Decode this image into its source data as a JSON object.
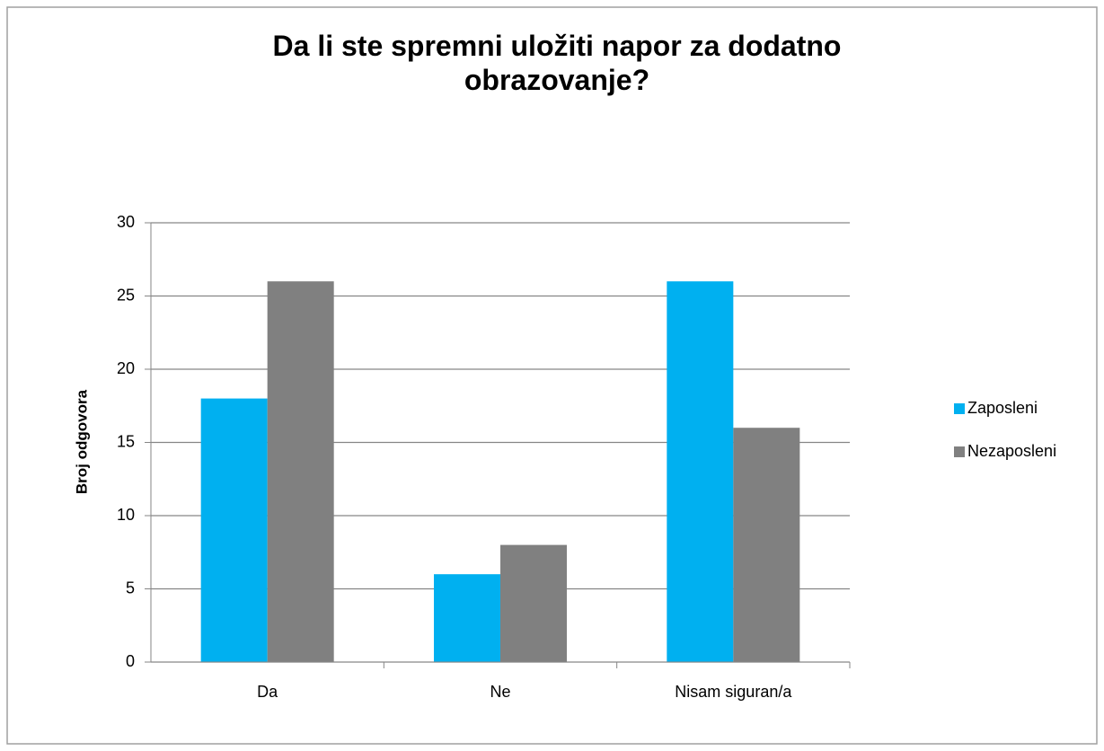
{
  "chart_data": {
    "type": "bar",
    "title": "Da li ste spremni uložiti napor za dodatno obrazovanje?",
    "y_label": "Broj odgovora",
    "categories": [
      "Da",
      "Ne",
      "Nisam siguran/a"
    ],
    "series": [
      {
        "name": "Zaposleni",
        "color": "#00b0f0",
        "values": [
          18,
          6,
          26
        ]
      },
      {
        "name": "Nezaposleni",
        "color": "#808080",
        "values": [
          26,
          8,
          16
        ]
      }
    ],
    "ylim": [
      0,
      30
    ],
    "yticks": [
      0,
      5,
      10,
      15,
      20,
      25,
      30
    ],
    "grid": true,
    "legend": "right"
  }
}
